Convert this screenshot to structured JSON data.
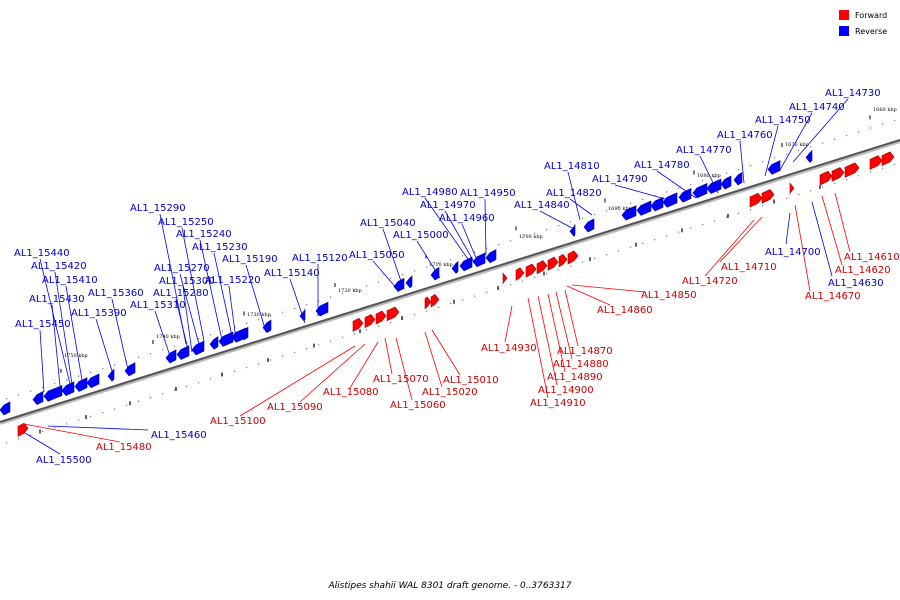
{
  "colors": {
    "forward": "#ff0000",
    "reverse": "#0000ff",
    "backbone": "#555555"
  },
  "legend": [
    {
      "key": "forward",
      "label": "Forward",
      "color": "#ff0000"
    },
    {
      "key": "reverse",
      "label": "Reverse",
      "color": "#0000ff"
    }
  ],
  "caption": "Alistipes shahii WAL 8301 draft genome. - 0..3763317",
  "ticks": [
    "1660 kbp",
    "1670 kbp",
    "1680 kbp",
    "1690 kbp",
    "1700 kbp",
    "1710 kbp",
    "1720 kbp",
    "1730 kbp",
    "1740 kbp",
    "1750 kbp"
  ],
  "reverse_labels": [
    "AL1_14730",
    "AL1_14740",
    "AL1_14750",
    "AL1_14760",
    "AL1_14770",
    "AL1_14780",
    "AL1_14790",
    "AL1_14810",
    "AL1_14820",
    "AL1_14840",
    "AL1_14950",
    "AL1_14980",
    "AL1_14970",
    "AL1_14960",
    "AL1_15000",
    "AL1_15040",
    "AL1_15050",
    "AL1_15120",
    "AL1_15140",
    "AL1_15190",
    "AL1_15220",
    "AL1_15230",
    "AL1_15240",
    "AL1_15250",
    "AL1_15290",
    "AL1_15270",
    "AL1_15280",
    "AL1_15300",
    "AL1_15310",
    "AL1_15360",
    "AL1_15390",
    "AL1_15440",
    "AL1_15420",
    "AL1_15410",
    "AL1_15430",
    "AL1_15450",
    "AL1_14700",
    "AL1_14630",
    "AL1_15460",
    "AL1_15500"
  ],
  "forward_labels": [
    "AL1_14610",
    "AL1_14620",
    "AL1_14670",
    "AL1_14710",
    "AL1_14720",
    "AL1_14850",
    "AL1_14860",
    "AL1_14870",
    "AL1_14880",
    "AL1_14890",
    "AL1_14900",
    "AL1_14910",
    "AL1_14930",
    "AL1_15010",
    "AL1_15020",
    "AL1_15060",
    "AL1_15070",
    "AL1_15080",
    "AL1_15090",
    "AL1_15100",
    "AL1_15480"
  ]
}
